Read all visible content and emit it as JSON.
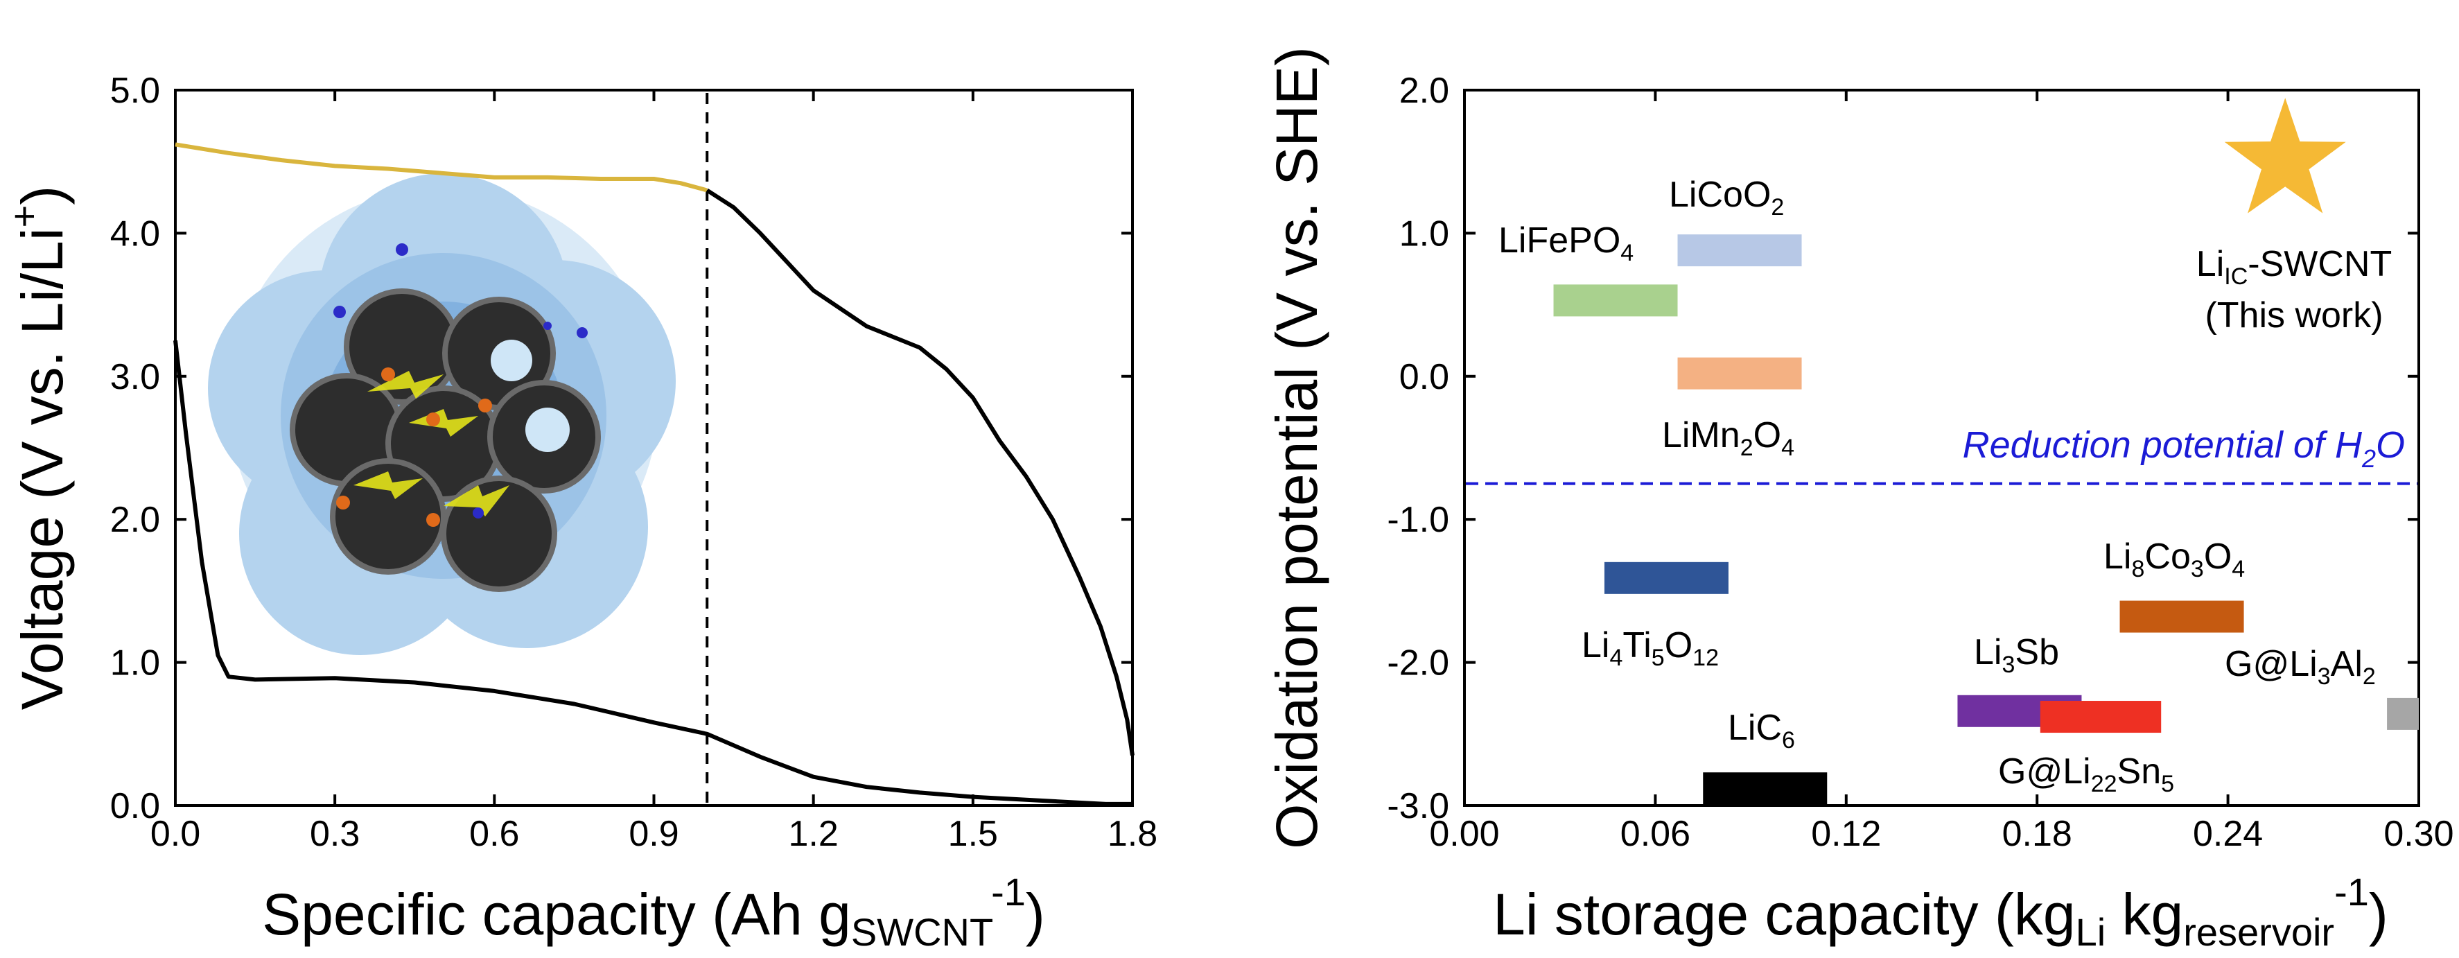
{
  "chart_data": [
    {
      "type": "line",
      "xlabel_parts": {
        "main": "Specific capacity (Ah g",
        "sub": "SWCNT",
        "sup": "-1",
        "close": ")"
      },
      "ylabel_parts": {
        "main": "Voltage (V vs. Li/Li",
        "sup": "+",
        "close": ")"
      },
      "xlim": [
        0.0,
        1.8
      ],
      "ylim": [
        0.0,
        5.0
      ],
      "xticks": [
        "0.0",
        "0.3",
        "0.6",
        "0.9",
        "1.2",
        "1.5",
        "1.8"
      ],
      "yticks": [
        "0.0",
        "1.0",
        "2.0",
        "3.0",
        "4.0",
        "5.0"
      ],
      "grid": false,
      "dashed_vline_x": 1.0,
      "series": [
        {
          "color": "#d9b53d",
          "x": [
            0.0,
            0.1,
            0.2,
            0.3,
            0.4,
            0.5,
            0.6,
            0.7,
            0.8,
            0.9,
            0.95,
            1.0
          ],
          "y": [
            4.62,
            4.56,
            4.51,
            4.47,
            4.45,
            4.42,
            4.39,
            4.39,
            4.38,
            4.38,
            4.35,
            4.3
          ]
        },
        {
          "color": "#000000",
          "x": [
            0.0,
            0.02,
            0.05,
            0.08,
            0.1,
            0.15,
            0.3,
            0.45,
            0.6,
            0.75,
            0.9,
            1.0,
            1.1,
            1.2,
            1.3,
            1.4,
            1.5,
            1.6,
            1.7,
            1.75,
            1.78,
            1.8
          ],
          "y": [
            3.25,
            2.6,
            1.7,
            1.05,
            0.9,
            0.88,
            0.89,
            0.86,
            0.8,
            0.71,
            0.58,
            0.5,
            0.34,
            0.2,
            0.13,
            0.09,
            0.06,
            0.04,
            0.02,
            0.01,
            0.01,
            0.01
          ]
        },
        {
          "color": "#000000",
          "x": [
            1.0,
            1.05,
            1.1,
            1.15,
            1.2,
            1.3,
            1.4,
            1.45,
            1.5,
            1.55,
            1.6,
            1.65,
            1.7,
            1.74,
            1.77,
            1.79,
            1.8
          ],
          "y": [
            4.3,
            4.18,
            4.0,
            3.8,
            3.6,
            3.35,
            3.2,
            3.05,
            2.85,
            2.55,
            2.3,
            2.0,
            1.6,
            1.25,
            0.9,
            0.6,
            0.35
          ]
        }
      ]
    },
    {
      "type": "bar",
      "xlabel_parts": {
        "main": "Li storage capacity (kg",
        "sub1": "Li",
        "mid": " kg",
        "sub2": "reservoir",
        "sup": "-1",
        "close": ")"
      },
      "ylabel": "Oxidation potential (V vs. SHE)",
      "xlim": [
        0.0,
        0.3
      ],
      "ylim": [
        -3.0,
        2.0
      ],
      "xticks": [
        "0.00",
        "0.06",
        "0.12",
        "0.18",
        "0.24",
        "0.30"
      ],
      "yticks": [
        "-3.0",
        "-2.0",
        "-1.0",
        "0.0",
        "1.0",
        "2.0"
      ],
      "grid": false,
      "reference_line": {
        "y": -0.75,
        "label_parts": {
          "main": "Reduction potential  of H",
          "sub": "2",
          "close": "O"
        },
        "color": "#1b1bd6"
      },
      "materials": [
        {
          "label": "LiCoO",
          "sub": "2",
          "x": [
            0.067,
            0.106
          ],
          "y": 0.88,
          "color": "#b7c8e6"
        },
        {
          "label": "LiFePO",
          "sub": "4",
          "x": [
            0.028,
            0.067
          ],
          "y": 0.53,
          "color": "#a9d18e"
        },
        {
          "label": "LiMn",
          "sub": "2",
          "label2": "O",
          "sub2": "4",
          "x": [
            0.067,
            0.106
          ],
          "y": 0.02,
          "color": "#f4b183"
        },
        {
          "label": "Li",
          "sub": "4",
          "label2": "Ti",
          "sub2": "5",
          "label3": "O",
          "sub3": "12",
          "x": [
            0.044,
            0.083
          ],
          "y": -1.41,
          "color": "#2f5597"
        },
        {
          "label": "Li",
          "sub": "8",
          "label2": "Co",
          "sub2": "3",
          "label3": "O",
          "sub3": "4",
          "x": [
            0.206,
            0.245
          ],
          "y": -1.68,
          "color": "#c55a11"
        },
        {
          "label": "Li",
          "sub": "3",
          "label2": "Sb",
          "x": [
            0.155,
            0.194
          ],
          "y": -2.34,
          "color": "#7030a0"
        },
        {
          "label": "G@Li",
          "sub": "22",
          "label2": "Sn",
          "sub2": "5",
          "x": [
            0.181,
            0.219
          ],
          "y": -2.38,
          "color": "#ee3023"
        },
        {
          "label": "G@Li",
          "sub": "3",
          "label2": "Al",
          "sub2": "2",
          "x": [
            0.29,
            0.3
          ],
          "y": -2.36,
          "color": "#a6a6a6"
        },
        {
          "label": "LiC",
          "sub": "6",
          "x": [
            0.075,
            0.114
          ],
          "y": -2.88,
          "color": "#000000"
        }
      ],
      "highlight": {
        "label": "Li",
        "sub": "IC",
        "label2": "-SWCNT",
        "line2": "(This work)",
        "x": 0.258,
        "y": 1.5,
        "color": "#f5b935",
        "marker": "star-icon"
      }
    }
  ]
}
